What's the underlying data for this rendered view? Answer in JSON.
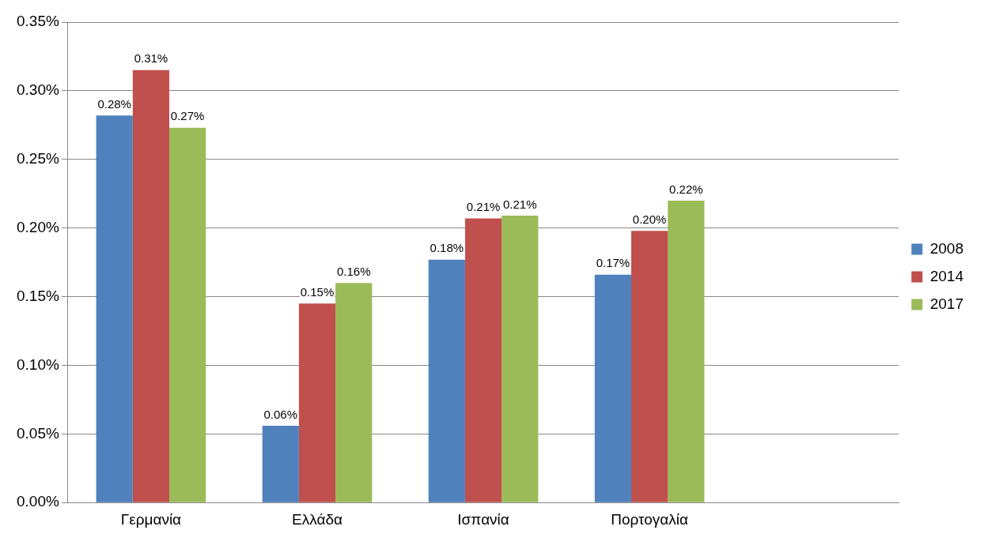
{
  "chart_data": {
    "type": "bar",
    "categories": [
      "Γερμανία",
      "Ελλάδα",
      "Ισπανία",
      "Πορτογαλία",
      null
    ],
    "series": [
      {
        "name": "2008",
        "color": "#4f81bd",
        "values": [
          0.282,
          0.056,
          0.177,
          0.166,
          null
        ],
        "value_labels": [
          "0.28%",
          "0.06%",
          "0.18%",
          "0.17%",
          null
        ]
      },
      {
        "name": "2014",
        "color": "#c0504d",
        "values": [
          0.315,
          0.145,
          0.207,
          0.198,
          null
        ],
        "value_labels": [
          "0.31%",
          "0.15%",
          "0.21%",
          "0.20%",
          null
        ]
      },
      {
        "name": "2017",
        "color": "#9bbb59",
        "values": [
          0.273,
          0.16,
          0.209,
          0.22,
          null
        ],
        "value_labels": [
          "0.27%",
          "0.16%",
          "0.21%",
          "0.22%",
          null
        ]
      }
    ],
    "ylim": [
      0,
      0.35
    ],
    "yticks": [
      {
        "value": 0,
        "label": "0.00%"
      },
      {
        "value": 0.05,
        "label": "0.05%"
      },
      {
        "value": 0.1,
        "label": "0.10%"
      },
      {
        "value": 0.15,
        "label": "0.15%"
      },
      {
        "value": 0.2,
        "label": "0.20%"
      },
      {
        "value": 0.25,
        "label": "0.25%"
      },
      {
        "value": 0.3,
        "label": "0.30%"
      },
      {
        "value": 0.35,
        "label": "0.35%"
      }
    ],
    "grid": "y",
    "legend": "right"
  }
}
